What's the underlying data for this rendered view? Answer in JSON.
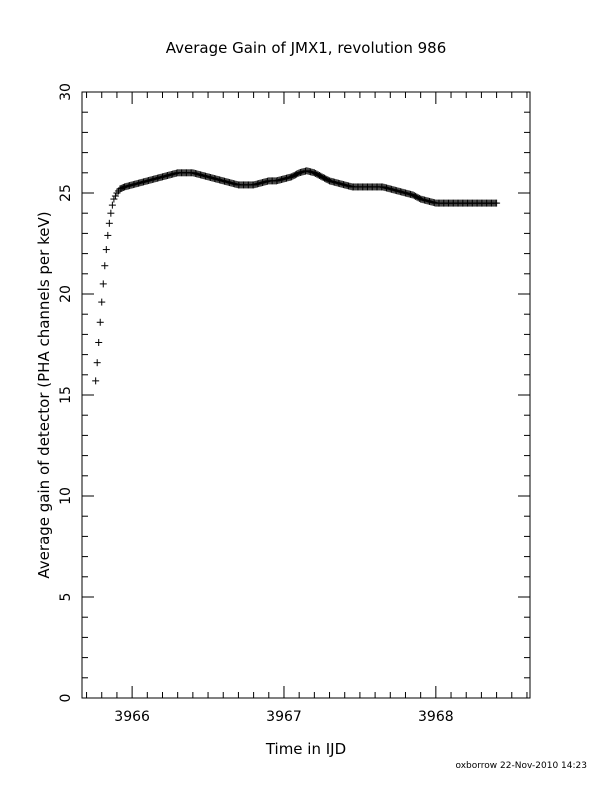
{
  "chart_data": {
    "type": "scatter",
    "title": "Average Gain of JMX1, revolution 986",
    "xlabel": "Time in IJD",
    "ylabel": "Average gain of detector (PHA channels per keV)",
    "xlim": [
      3965.67,
      3968.62
    ],
    "ylim": [
      0,
      30
    ],
    "x_ticks": [
      3966,
      3967,
      3968
    ],
    "y_ticks": [
      0,
      5,
      10,
      15,
      20,
      25,
      30
    ],
    "x_minor_step": 0.1,
    "y_minor_step": 1,
    "marker": "plus",
    "grid": false,
    "legend": "none",
    "series": [
      {
        "x": [
          3965.76,
          3965.77,
          3965.78,
          3965.79,
          3965.8,
          3965.81,
          3965.82,
          3965.83,
          3965.84,
          3965.85,
          3965.86,
          3965.87,
          3965.88,
          3965.9,
          3965.92,
          3965.95,
          3966.0,
          3966.05,
          3966.1,
          3966.15,
          3966.2,
          3966.25,
          3966.3,
          3966.35,
          3966.4,
          3966.45,
          3966.5,
          3966.55,
          3966.6,
          3966.65,
          3966.7,
          3966.75,
          3966.8,
          3966.85,
          3966.9,
          3966.95,
          3967.0,
          3967.05,
          3967.1,
          3967.15,
          3967.2,
          3967.25,
          3967.3,
          3967.35,
          3967.4,
          3967.45,
          3967.5,
          3967.55,
          3967.6,
          3967.65,
          3967.7,
          3967.75,
          3967.8,
          3967.85,
          3967.9,
          3967.95,
          3968.0,
          3968.05,
          3968.1,
          3968.15,
          3968.2,
          3968.25,
          3968.3,
          3968.35,
          3968.4
        ],
        "y": [
          15.7,
          16.6,
          17.6,
          18.6,
          19.6,
          20.5,
          21.4,
          22.2,
          22.9,
          23.5,
          24.0,
          24.4,
          24.7,
          25.0,
          25.2,
          25.3,
          25.4,
          25.5,
          25.6,
          25.7,
          25.8,
          25.9,
          26.0,
          26.0,
          26.0,
          25.9,
          25.8,
          25.7,
          25.6,
          25.5,
          25.4,
          25.4,
          25.4,
          25.5,
          25.6,
          25.6,
          25.7,
          25.8,
          26.0,
          26.1,
          26.0,
          25.8,
          25.6,
          25.5,
          25.4,
          25.3,
          25.3,
          25.3,
          25.3,
          25.3,
          25.2,
          25.1,
          25.0,
          24.9,
          24.7,
          24.6,
          24.5,
          24.5,
          24.5,
          24.5,
          24.5,
          24.5,
          24.5,
          24.5,
          24.5
        ]
      }
    ]
  },
  "footer": {
    "text": "oxborrow 22-Nov-2010 14:23"
  }
}
